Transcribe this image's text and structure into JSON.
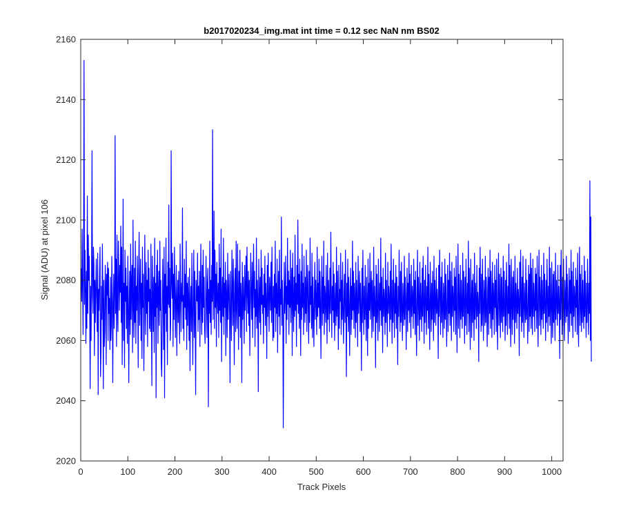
{
  "chart_data": {
    "type": "line",
    "title": "b2017020234_img.mat int time = 0.12 sec  NaN nm BS02",
    "xlabel": "Track Pixels",
    "ylabel": "Signal (ADU) at pixel 106",
    "xlim": [
      0,
      1024
    ],
    "ylim": [
      2020,
      2160
    ],
    "xticks": [
      0,
      100,
      200,
      300,
      400,
      500,
      600,
      700,
      800,
      900,
      1000
    ],
    "yticks": [
      2020,
      2040,
      2060,
      2080,
      2100,
      2120,
      2140,
      2160
    ],
    "grid": false,
    "legend": "none",
    "series": [
      {
        "color": "#0000ff",
        "x_start": 1,
        "x_step": 1,
        "values": [
          2084,
          2073,
          2097,
          2079,
          2062,
          2086,
          2153,
          2072,
          2090,
          2076,
          2059,
          2083,
          2064,
          2108,
          2069,
          2095,
          2080,
          2088,
          2073,
          2044,
          2078,
          2060,
          2082,
          2123,
          2075,
          2069,
          2091,
          2085,
          2055,
          2080,
          2066,
          2078,
          2087,
          2072,
          2063,
          2089,
          2042,
          2077,
          2070,
          2083,
          2091,
          2048,
          2056,
          2078,
          2067,
          2092,
          2074,
          2044,
          2080,
          2058,
          2063,
          2085,
          2079,
          2052,
          2082,
          2075,
          2086,
          2060,
          2084,
          2069,
          2074,
          2057,
          2081,
          2060,
          2065,
          2088,
          2075,
          2046,
          2071,
          2082,
          2064,
          2075,
          2128,
          2069,
          2087,
          2058,
          2095,
          2072,
          2063,
          2093,
          2081,
          2070,
          2085,
          2076,
          2098,
          2066,
          2091,
          2052,
          2074,
          2107,
          2060,
          2079,
          2051,
          2090,
          2073,
          2084,
          2064,
          2078,
          2059,
          2088,
          2075,
          2046,
          2070,
          2083,
          2062,
          2092,
          2067,
          2079,
          2085,
          2056,
          2100,
          2072,
          2061,
          2084,
          2066,
          2093,
          2059,
          2078,
          2070,
          2088,
          2074,
          2051,
          2083,
          2096,
          2065,
          2076,
          2087,
          2060,
          2079,
          2054,
          2091,
          2071,
          2082,
          2050,
          2067,
          2095,
          2075,
          2062,
          2086,
          2069,
          2080,
          2058,
          2090,
          2073,
          2084,
          2064,
          2077,
          2063,
          2092,
          2070,
          2045,
          2088,
          2075,
          2063,
          2081,
          2056,
          2094,
          2068,
          2079,
          2041,
          2085,
          2071,
          2090,
          2059,
          2076,
          2083,
          2065,
          2093,
          2070,
          2080,
          2052,
          2048,
          2067,
          2087,
          2074,
          2057,
          2091,
          2041,
          2082,
          2069,
          2094,
          2063,
          2078,
          2052,
          2086,
          2072,
          2105,
          2071,
          2084,
          2060,
          2066,
          2123,
          2079,
          2074,
          2089,
          2058,
          2082,
          2067,
          2091,
          2075,
          2061,
          2076,
          2085,
          2055,
          2073,
          2080,
          2066,
          2083,
          2070,
          2059,
          2092,
          2077,
          2063,
          2079,
          2073,
          2104,
          2064,
          2075,
          2060,
          2087,
          2071,
          2082,
          2067,
          2093,
          2057,
          2079,
          2065,
          2081,
          2074,
          2060,
          2084,
          2050,
          2072,
          2078,
          2063,
          2089,
          2069,
          2052,
          2076,
          2090,
          2061,
          2083,
          2068,
          2042,
          2080,
          2074,
          2073,
          2089,
          2063,
          2078,
          2067,
          2083,
          2058,
          2075,
          2092,
          2069,
          2062,
          2085,
          2066,
          2090,
          2071,
          2081,
          2064,
          2059,
          2070,
          2088,
          2073,
          2061,
          2079,
          2084,
          2038,
          2077,
          2069,
          2093,
          2066,
          2080,
          2062,
          2085,
          2073,
          2130,
          2067,
          2078,
          2103,
          2064,
          2090,
          2071,
          2082,
          2058,
          2086,
          2075,
          2069,
          2079,
          2061,
          2092,
          2070,
          2084,
          2066,
          2097,
          2053,
          2073,
          2081,
          2068,
          2094,
          2062,
          2079,
          2071,
          2086,
          2055,
          2080,
          2074,
          2061,
          2089,
          2067,
          2075,
          2082,
          2069,
          2046,
          2083,
          2072,
          2060,
          2090,
          2078,
          2065,
          2087,
          2071,
          2052,
          2079,
          2084,
          2063,
          2093,
          2070,
          2064,
          2092,
          2076,
          2057,
          2083,
          2068,
          2090,
          2061,
          2079,
          2074,
          2046,
          2086,
          2067,
          2081,
          2073,
          2059,
          2085,
          2070,
          2078,
          2088,
          2063,
          2091,
          2076,
          2069,
          2083,
          2065,
          2080,
          2055,
          2072,
          2089,
          2075,
          2067,
          2086,
          2061,
          2079,
          2092,
          2071,
          2083,
          2058,
          2077,
          2068,
          2094,
          2064,
          2080,
          2073,
          2043,
          2087,
          2076,
          2066,
          2081,
          2062,
          2090,
          2072,
          2084,
          2069,
          2075,
          2059,
          2082,
          2071,
          2088,
          2065,
          2079,
          2073,
          2054,
          2085,
          2068,
          2089,
          2074,
          2063,
          2081,
          2076,
          2070,
          2086,
          2066,
          2091,
          2072,
          2060,
          2078,
          2061,
          2082,
          2071,
          2093,
          2063,
          2079,
          2069,
          2087,
          2056,
          2075,
          2083,
          2068,
          2090,
          2062,
          2077,
          2072,
          2101,
          2065,
          2080,
          2073,
          2031,
          2064,
          2086,
          2069,
          2075,
          2088,
          2059,
          2078,
          2067,
          2094,
          2072,
          2083,
          2062,
          2080,
          2071,
          2090,
          2066,
          2076,
          2084,
          2055,
          2089,
          2074,
          2063,
          2081,
          2068,
          2095,
          2070,
          2079,
          2058,
          2085,
          2072,
          2100,
          2069,
          2082,
          2064,
          2087,
          2073,
          2055,
          2083,
          2067,
          2092,
          2071,
          2079,
          2062,
          2088,
          2074,
          2066,
          2081,
          2069,
          2090,
          2063,
          2076,
          2085,
          2070,
          2059,
          2083,
          2066,
          2094,
          2072,
          2078,
          2064,
          2089,
          2061,
          2081,
          2070,
          2058,
          2075,
          2086,
          2067,
          2080,
          2073,
          2062,
          2091,
          2068,
          2079,
          2071,
          2087,
          2064,
          2083,
          2072,
          2054,
          2076,
          2088,
          2065,
          2081,
          2069,
          2093,
          2062,
          2078,
          2074,
          2066,
          2085,
          2071,
          2059,
          2089,
          2067,
          2080,
          2073,
          2063,
          2084,
          2069,
          2096,
          2075,
          2061,
          2078,
          2070,
          2086,
          2066,
          2082,
          2060,
          2072,
          2079,
          2065,
          2091,
          2068,
          2083,
          2071,
          2057,
          2085,
          2064,
          2077,
          2073,
          2089,
          2062,
          2080,
          2067,
          2086,
          2070,
          2059,
          2075,
          2082,
          2066,
          2090,
          2072,
          2048,
          2079,
          2068,
          2087,
          2063,
          2081,
          2071,
          2055,
          2076,
          2084,
          2062,
          2078,
          2067,
          2093,
          2070,
          2083,
          2064,
          2079,
          2073,
          2061,
          2086,
          2066,
          2080,
          2072,
          2058,
          2088,
          2069,
          2075,
          2083,
          2063,
          2079,
          2071,
          2050,
          2084,
          2066,
          2090,
          2073,
          2062,
          2078,
          2067,
          2085,
          2070,
          2060,
          2081,
          2072,
          2055,
          2087,
          2064,
          2079,
          2070,
          2089,
          2067,
          2076,
          2083,
          2061,
          2080,
          2073,
          2063,
          2091,
          2068,
          2078,
          2072,
          2051,
          2085,
          2066,
          2082,
          2069,
          2060,
          2087,
          2074,
          2063,
          2079,
          2070,
          2094,
          2065,
          2081,
          2073,
          2056,
          2084,
          2068,
          2077,
          2072,
          2062,
          2089,
          2066,
          2080,
          2071,
          2058,
          2086,
          2069,
          2078,
          2074,
          2063,
          2083,
          2067,
          2092,
          2072,
          2059,
          2080,
          2066,
          2087,
          2073,
          2061,
          2079,
          2069,
          2085,
          2064,
          2081,
          2071,
          2052,
          2078,
          2068,
          2090,
          2074,
          2063,
          2083,
          2066,
          2086,
          2070,
          2060,
          2079,
          2072,
          2065,
          2088,
          2067,
          2081,
          2073,
          2057,
          2076,
          2084,
          2063,
          2079,
          2070,
          2089,
          2066,
          2082,
          2072,
          2061,
          2085,
          2068,
          2078,
          2074,
          2064,
          2087,
          2069,
          2080,
          2062,
          2083,
          2071,
          2055,
          2075,
          2090,
          2065,
          2081,
          2073,
          2060,
          2086,
          2067,
          2079,
          2071,
          2063,
          2084,
          2068,
          2088,
          2072,
          2059,
          2080,
          2066,
          2085,
          2073,
          2062,
          2078,
          2070,
          2091,
          2064,
          2082,
          2069,
          2057,
          2086,
          2074,
          2063,
          2079,
          2067,
          2083,
          2071,
          2060,
          2088,
          2066,
          2080,
          2073,
          2065,
          2084,
          2069,
          2077,
          2072,
          2054,
          2085,
          2068,
          2090,
          2074,
          2062,
          2081,
          2066,
          2086,
          2070,
          2061,
          2079,
          2073,
          2064,
          2087,
          2067,
          2082,
          2071,
          2058,
          2076,
          2085,
          2063,
          2080,
          2069,
          2089,
          2065,
          2083,
          2072,
          2060,
          2086,
          2068,
          2078,
          2074,
          2063,
          2084,
          2070,
          2081,
          2062,
          2088,
          2071,
          2056,
          2077,
          2092,
          2064,
          2082,
          2073,
          2061,
          2085,
          2067,
          2080,
          2070,
          2064,
          2089,
          2068,
          2083,
          2072,
          2059,
          2081,
          2065,
          2087,
          2073,
          2062,
          2079,
          2069,
          2093,
          2063,
          2084,
          2070,
          2057,
          2087,
          2075,
          2061,
          2080,
          2066,
          2082,
          2071,
          2060,
          2089,
          2067,
          2079,
          2073,
          2064,
          2085,
          2068,
          2076,
          2072,
          2053,
          2084,
          2069,
          2091,
          2075,
          2063,
          2082,
          2065,
          2087,
          2070,
          2060,
          2080,
          2074,
          2065,
          2088,
          2066,
          2081,
          2071,
          2058,
          2077,
          2084,
          2062,
          2081,
          2069,
          2090,
          2064,
          2083,
          2072,
          2061,
          2086,
          2067,
          2079,
          2074,
          2062,
          2085,
          2071,
          2080,
          2063,
          2087,
          2070,
          2057,
          2076,
          2089,
          2065,
          2082,
          2073,
          2061,
          2084,
          2066,
          2081,
          2070,
          2063,
          2088,
          2068,
          2083,
          2071,
          2060,
          2080,
          2065,
          2086,
          2073,
          2062,
          2078,
          2069,
          2092,
          2064,
          2085,
          2070,
          2058,
          2087,
          2074,
          2062,
          2081,
          2067,
          2083,
          2072,
          2059,
          2088,
          2066,
          2079,
          2073,
          2064,
          2084,
          2069,
          2077,
          2073,
          2055,
          2086,
          2068,
          2090,
          2074,
          2063,
          2081,
          2066,
          2088,
          2071,
          2061,
          2079,
          2073,
          2066,
          2087,
          2067,
          2080,
          2070,
          2059,
          2076,
          2085,
          2063,
          2082,
          2068,
          2089,
          2064,
          2084,
          2072,
          2062,
          2087,
          2068,
          2079,
          2073,
          2063,
          2084,
          2070,
          2082,
          2064,
          2088,
          2071,
          2058,
          2077,
          2090,
          2065,
          2081,
          2073,
          2062,
          2085,
          2067,
          2080,
          2071,
          2064,
          2089,
          2069,
          2082,
          2072,
          2060,
          2080,
          2066,
          2087,
          2074,
          2063,
          2078,
          2068,
          2091,
          2065,
          2084,
          2071,
          2059,
          2086,
          2073,
          2061,
          2082,
          2066,
          2083,
          2070,
          2060,
          2089,
          2067,
          2080,
          2073,
          2065,
          2085,
          2069,
          2078,
          2072,
          2054,
          2085,
          2067,
          2090,
          2075,
          2062,
          2081,
          2065,
          2087,
          2071,
          2060,
          2080,
          2074,
          2066,
          2088,
          2068,
          2082,
          2070,
          2059,
          2077,
          2084,
          2063,
          2080,
          2069,
          2090,
          2065,
          2083,
          2072,
          2061,
          2086,
          2068,
          2078,
          2074,
          2063,
          2084,
          2071,
          2080,
          2062,
          2089,
          2070,
          2058,
          2076,
          2091,
          2065,
          2082,
          2072,
          2063,
          2085,
          2066,
          2080,
          2071,
          2064,
          2088,
          2068,
          2083,
          2071,
          2061,
          2079,
          2066,
          2087,
          2073,
          2062,
          2079,
          2069,
          2113,
          2060,
          2101,
          2053
        ]
      }
    ]
  }
}
